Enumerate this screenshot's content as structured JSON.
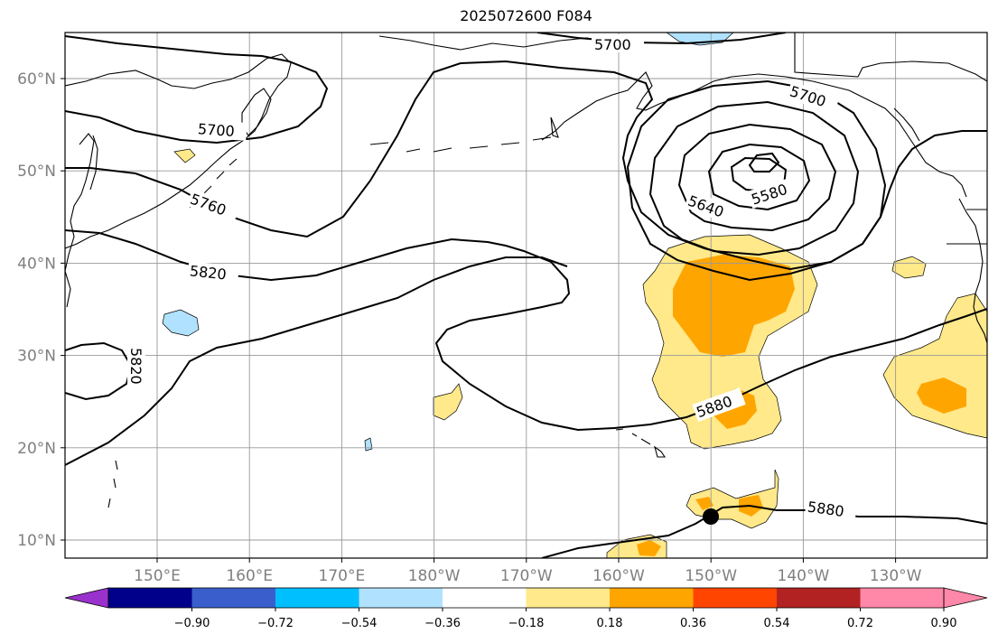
{
  "title": "2025072600 F084",
  "latitudes": [
    {
      "label": "60°N",
      "deg": 60
    },
    {
      "label": "50°N",
      "deg": 50
    },
    {
      "label": "40°N",
      "deg": 40
    },
    {
      "label": "30°N",
      "deg": 30
    },
    {
      "label": "20°N",
      "deg": 20
    },
    {
      "label": "10°N",
      "deg": 10
    }
  ],
  "longitudes": [
    {
      "label": "150°E",
      "deg": 150
    },
    {
      "label": "160°E",
      "deg": 160
    },
    {
      "label": "170°E",
      "deg": 170
    },
    {
      "label": "180°W",
      "deg": 180
    },
    {
      "label": "170°W",
      "deg": 190
    },
    {
      "label": "160°W",
      "deg": 200
    },
    {
      "label": "150°W",
      "deg": 210
    },
    {
      "label": "140°W",
      "deg": 220
    },
    {
      "label": "130°W",
      "deg": 230
    }
  ],
  "contour_labels": [
    "5700",
    "5700",
    "5700",
    "5760",
    "5820",
    "5820",
    "5640",
    "5580",
    "5880",
    "5880"
  ],
  "colorbar": {
    "ticks": [
      "−0.90",
      "−0.72",
      "−0.54",
      "−0.36",
      "−0.18",
      "0.18",
      "0.36",
      "0.54",
      "0.72",
      "0.90"
    ],
    "colors": [
      "#9932CC",
      "#00008B",
      "#3A5FCD",
      "#00BFFF",
      "#B0E2FF",
      "#FFFFFF",
      "#FFE98A",
      "#FFA500",
      "#FF4500",
      "#B22222",
      "#FF87A8",
      "#FF87A8"
    ]
  },
  "shading_colors": {
    "light_orange": "#FFE98A",
    "orange": "#FFA500",
    "light_blue": "#B0E2FF"
  }
}
